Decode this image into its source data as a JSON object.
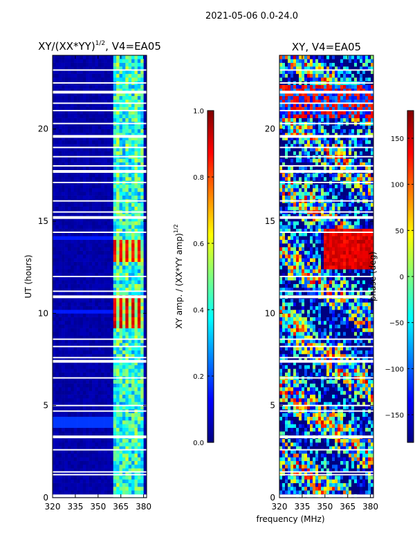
{
  "suptitle": "2021-05-06 0.0-24.0",
  "xlabel_shared": "frequency (MHz)",
  "colors": {
    "jet": [
      "#00007f",
      "#0000ff",
      "#007fff",
      "#00ffff",
      "#7fff7f",
      "#ffff00",
      "#ff7f00",
      "#ff0000",
      "#7f0000"
    ],
    "gap": "#ffffff"
  },
  "chart_data": [
    {
      "type": "heatmap",
      "title": "XY/(XX*YY)",
      "title_sup": "1/2",
      "title_suffix": ", V4=EA05",
      "ylabel": "UT (hours)",
      "xlabel": "",
      "xlim": [
        320,
        382
      ],
      "ylim": [
        0,
        24
      ],
      "xticks": [
        320,
        335,
        350,
        365,
        380
      ],
      "xtick_labels": [
        "320",
        "335",
        "350",
        "365",
        "380"
      ],
      "yticks": [
        0,
        5,
        10,
        15,
        20
      ],
      "ytick_labels": [
        "0",
        "5",
        "10",
        "15",
        "20"
      ],
      "colorbar": {
        "label": "XY amp. / (XX*YY amp)",
        "label_sup": "1/2",
        "range": [
          0.0,
          1.0
        ],
        "ticks": [
          0.0,
          0.2,
          0.4,
          0.6,
          0.8,
          1.0
        ],
        "tick_labels": [
          "0.0",
          "0.2",
          "0.4",
          "0.6",
          "0.8",
          "1.0"
        ]
      },
      "features": {
        "background_value": 0.02,
        "active_band_mhz": [
          360,
          380
        ],
        "bright_blocks": [
          {
            "freq": [
              360,
              380
            ],
            "hours": [
              9.3,
              11.0
            ],
            "value": 0.85
          },
          {
            "freq": [
              360,
              380
            ],
            "hours": [
              12.8,
              14.0
            ],
            "value": 0.82
          }
        ],
        "faint_bands": [
          {
            "hours": [
              3.9,
              4.3
            ],
            "value": 0.18
          },
          {
            "hours": [
              10.0,
              10.2
            ],
            "value": 0.15
          },
          {
            "hours": [
              14.0,
              14.2
            ],
            "value": 0.15
          }
        ]
      }
    },
    {
      "type": "heatmap",
      "title": "XY, V4=EA05",
      "ylabel": "",
      "xlabel": "frequency (MHz)",
      "xlim": [
        320,
        382
      ],
      "ylim": [
        0,
        24
      ],
      "xticks": [
        320,
        335,
        350,
        365,
        380
      ],
      "xtick_labels": [
        "320",
        "335",
        "350",
        "365",
        "380"
      ],
      "yticks": [
        0,
        5,
        10,
        15,
        20
      ],
      "ytick_labels": [
        "0",
        "5",
        "10",
        "15",
        "20"
      ],
      "colorbar": {
        "label": "phase (deg)",
        "range": [
          -180,
          180
        ],
        "ticks": [
          -150,
          -100,
          -50,
          0,
          50,
          100,
          150
        ],
        "tick_labels": [
          "−150",
          "−100",
          "−50",
          "0",
          "50",
          "100",
          "150"
        ]
      },
      "features": {
        "structure": "noisy phase, coherent red region near 350-382 MHz between 12.5 and 14.5 h"
      }
    }
  ],
  "gap_hours": [
    0.1,
    1.25,
    1.4,
    2.6,
    3.3,
    4.7,
    5.0,
    6.5,
    7.4,
    7.6,
    8.2,
    8.6,
    10.9,
    11.2,
    12.0,
    14.4,
    15.2,
    15.5,
    16.1,
    17.1,
    17.7,
    18.0,
    18.5,
    19.0,
    19.6,
    20.3,
    21.0,
    21.4,
    22.0,
    22.5,
    23.2
  ]
}
